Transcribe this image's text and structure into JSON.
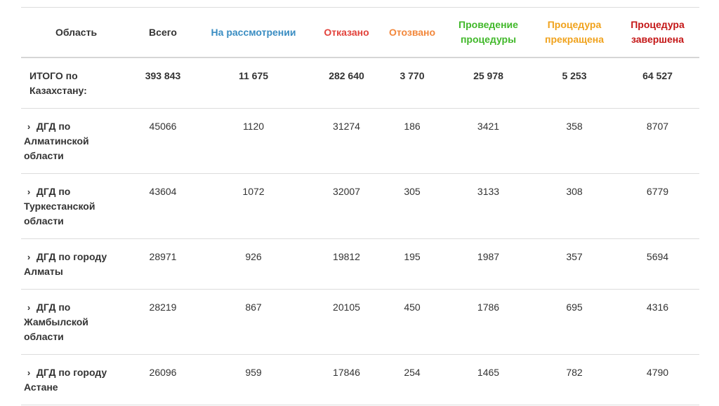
{
  "table": {
    "headers": {
      "region": "Область",
      "total": "Всего",
      "review": "На рассмотрении",
      "refused": "Отказано",
      "withdrawn": "Отозвано",
      "ongoing_line1": "Проведение",
      "ongoing_line2": "процедуры",
      "stopped_line1": "Процедура",
      "stopped_line2": "прекращена",
      "done_line1": "Процедура",
      "done_line2": "завершена"
    },
    "header_colors": {
      "review": "#3a8dc2",
      "refused": "#e2423b",
      "withdrawn": "#f2873b",
      "ongoing": "#41b82a",
      "stopped": "#f0a21c",
      "done": "#c41616"
    },
    "total_row": {
      "region_line1": "ИТОГО по",
      "region_line2": "Казахстану:",
      "total": "393 843",
      "review": "11 675",
      "refused": "282 640",
      "withdrawn": "3 770",
      "ongoing": "25 978",
      "stopped": "5 253",
      "done": "64 527"
    },
    "rows": [
      {
        "chevron": "›",
        "region_line1": "ДГД по",
        "region_line2": "Алматинской",
        "region_line3": "области",
        "total": "45066",
        "review": "1120",
        "refused": "31274",
        "withdrawn": "186",
        "ongoing": "3421",
        "stopped": "358",
        "done": "8707"
      },
      {
        "chevron": "›",
        "region_line1": "ДГД по",
        "region_line2": "Туркестанской",
        "region_line3": "области",
        "total": "43604",
        "review": "1072",
        "refused": "32007",
        "withdrawn": "305",
        "ongoing": "3133",
        "stopped": "308",
        "done": "6779"
      },
      {
        "chevron": "›",
        "region_line1": "ДГД по городу",
        "region_line2": "Алматы",
        "total": "28971",
        "review": "926",
        "refused": "19812",
        "withdrawn": "195",
        "ongoing": "1987",
        "stopped": "357",
        "done": "5694"
      },
      {
        "chevron": "›",
        "region_line1": "ДГД по",
        "region_line2": "Жамбылской",
        "region_line3": "области",
        "total": "28219",
        "review": "867",
        "refused": "20105",
        "withdrawn": "450",
        "ongoing": "1786",
        "stopped": "695",
        "done": "4316"
      },
      {
        "chevron": "›",
        "region_line1": "ДГД по городу",
        "region_line2": "Астане",
        "total": "26096",
        "review": "959",
        "refused": "17846",
        "withdrawn": "254",
        "ongoing": "1465",
        "stopped": "782",
        "done": "4790"
      }
    ]
  }
}
